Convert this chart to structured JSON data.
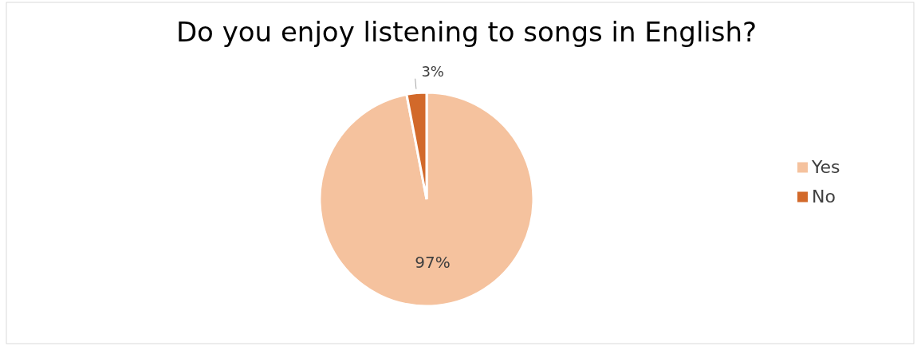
{
  "chart_data": {
    "type": "pie",
    "title": "Do you enjoy listening to songs in English?",
    "categories": [
      "Yes",
      "No"
    ],
    "values": [
      97,
      3
    ],
    "colors": [
      "#f5c29e",
      "#d2692a"
    ],
    "value_labels": [
      "97%",
      "3%"
    ],
    "legend": "right"
  }
}
